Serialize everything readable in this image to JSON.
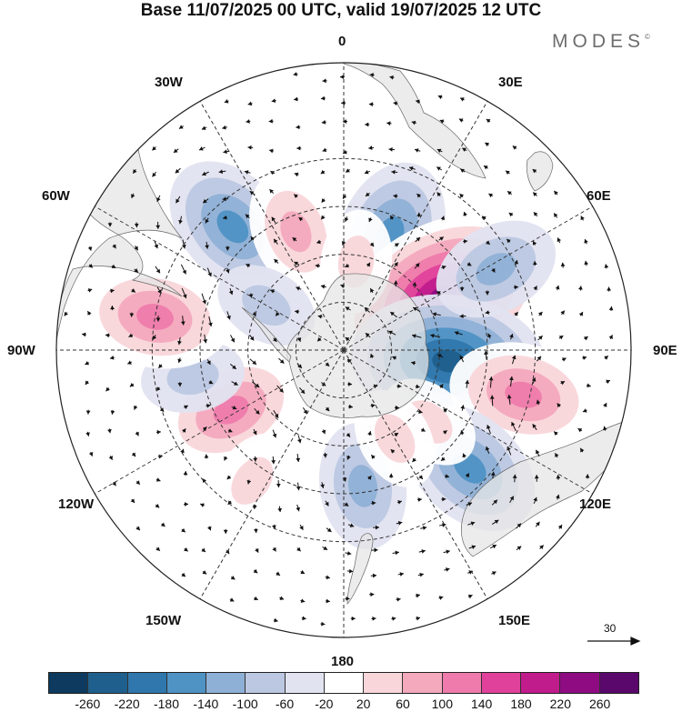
{
  "title": "Base 11/07/2025 00 UTC, valid 19/07/2025 12 UTC",
  "brand": "MODES",
  "brand_mark": "©",
  "longitude_labels": {
    "lon_0": "0",
    "lon_30e": "30E",
    "lon_60e": "60E",
    "lon_90e": "90E",
    "lon_120e": "120E",
    "lon_150e": "150E",
    "lon_180": "180",
    "lon_150w": "150W",
    "lon_120w": "120W",
    "lon_90w": "90W",
    "lon_60w": "60W",
    "lon_30w": "30W"
  },
  "wind_reference": {
    "value": "30"
  },
  "colorbar": {
    "labels": [
      "-260",
      "-220",
      "-180",
      "-140",
      "-100",
      "-60",
      "-20",
      "20",
      "60",
      "100",
      "140",
      "180",
      "220",
      "260"
    ],
    "colors": [
      "#0d3a5e",
      "#1f5f8d",
      "#2f77ad",
      "#4f92c4",
      "#8fb0d6",
      "#bcc8e2",
      "#e2e3f0",
      "#ffffff",
      "#f9d6da",
      "#f4a9bd",
      "#ee7bab",
      "#e0429b",
      "#c01c8c",
      "#8e0b82",
      "#5a086b"
    ]
  },
  "anomalies": [
    {
      "name": "neg-30e",
      "value": -140,
      "lat": -51,
      "lon": 22
    },
    {
      "name": "pos-65e",
      "value": 260,
      "lat": -55,
      "lon": 62
    },
    {
      "name": "neg-95e",
      "value": -200,
      "lat": -57,
      "lon": 96
    },
    {
      "name": "pos-105e",
      "value": 140,
      "lat": -32,
      "lon": 104
    },
    {
      "name": "neg-130e",
      "value": -140,
      "lat": -36,
      "lon": 133
    },
    {
      "name": "neg-60e",
      "value": -100,
      "lat": -36,
      "lon": 62
    },
    {
      "name": "pos-125e",
      "value": 60,
      "lat": -55,
      "lon": 130
    },
    {
      "name": "neg-175e",
      "value": -100,
      "lat": -47,
      "lon": 172
    },
    {
      "name": "pos-120w",
      "value": 140,
      "lat": -50,
      "lon": -118
    },
    {
      "name": "neg-105w",
      "value": -60,
      "lat": -42,
      "lon": -100
    },
    {
      "name": "pos-85w",
      "value": 140,
      "lat": -30,
      "lon": -80
    },
    {
      "name": "neg-45w",
      "value": -140,
      "lat": -38,
      "lon": -42
    },
    {
      "name": "pos-25w",
      "value": 100,
      "lat": -50,
      "lon": -22
    },
    {
      "name": "neg-60w",
      "value": -60,
      "lat": -62,
      "lon": -60
    },
    {
      "name": "pos-10e",
      "value": 60,
      "lat": -62,
      "lon": 8
    },
    {
      "name": "pos-150w",
      "value": 60,
      "lat": -40,
      "lon": -145
    },
    {
      "name": "pos-150e",
      "value": 60,
      "lat": -58,
      "lon": 150
    }
  ]
}
